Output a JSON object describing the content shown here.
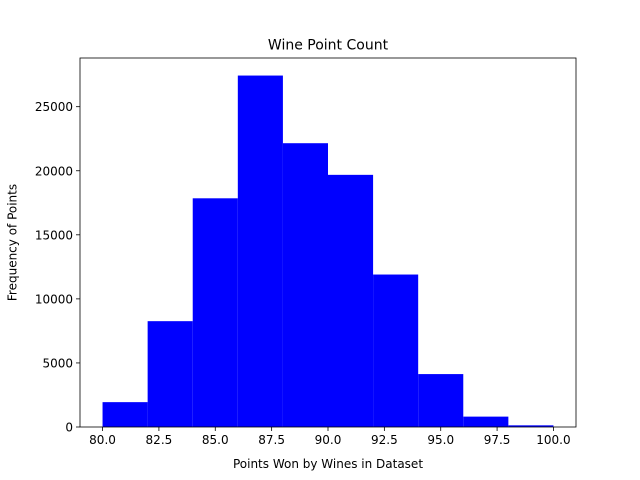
{
  "chart_data": {
    "type": "bar",
    "title": "Wine Point Count",
    "xlabel": "Points Won by Wines in Dataset",
    "ylabel": "Frequency of Points",
    "bins": [
      {
        "start": 80,
        "end": 82,
        "count": 1940
      },
      {
        "start": 82,
        "end": 84,
        "count": 8260
      },
      {
        "start": 84,
        "end": 86,
        "count": 17850
      },
      {
        "start": 86,
        "end": 88,
        "count": 27430
      },
      {
        "start": 88,
        "end": 90,
        "count": 22150
      },
      {
        "start": 90,
        "end": 92,
        "count": 19680
      },
      {
        "start": 92,
        "end": 94,
        "count": 11900
      },
      {
        "start": 94,
        "end": 96,
        "count": 4130
      },
      {
        "start": 96,
        "end": 98,
        "count": 810
      },
      {
        "start": 98,
        "end": 100,
        "count": 130
      }
    ],
    "xlim": [
      79,
      101
    ],
    "ylim": [
      0,
      28800
    ],
    "xticks": [
      80.0,
      82.5,
      85.0,
      87.5,
      90.0,
      92.5,
      95.0,
      97.5,
      100.0
    ],
    "xtick_labels": [
      "80.0",
      "82.5",
      "85.0",
      "87.5",
      "90.0",
      "92.5",
      "95.0",
      "97.5",
      "100.0"
    ],
    "yticks": [
      0,
      5000,
      10000,
      15000,
      20000,
      25000
    ],
    "ytick_labels": [
      "0",
      "5000",
      "10000",
      "15000",
      "20000",
      "25000"
    ],
    "bar_color": "#0000ff",
    "grid": false,
    "legend": false
  }
}
